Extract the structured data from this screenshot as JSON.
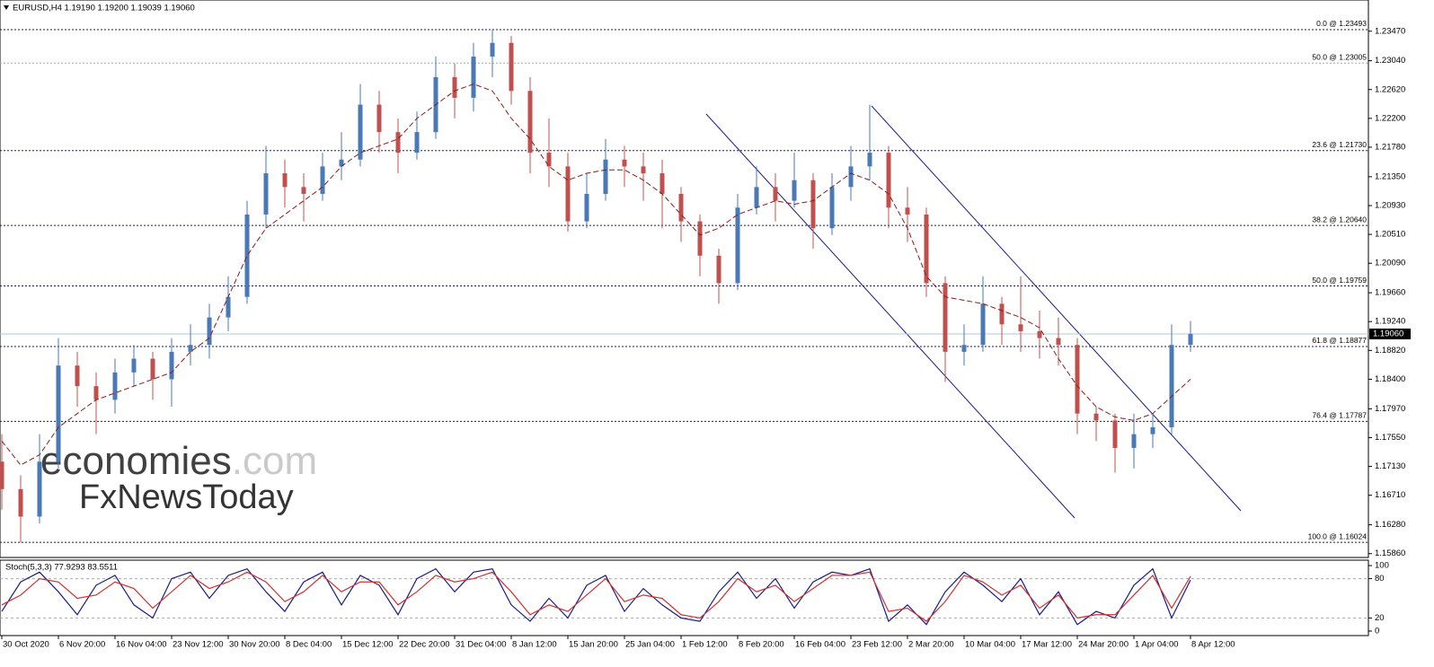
{
  "chart_data": [
    {
      "type": "candlestick",
      "title": "EURUSD,H4  1.19190 1.19200 1.19039 1.19060",
      "categories": [
        "30 Oct 2020",
        null,
        null,
        "6 Nov 20:00",
        null,
        null,
        "16 Nov 04:00",
        null,
        null,
        "23 Nov 12:00",
        null,
        null,
        "30 Nov 20:00",
        null,
        null,
        "8 Dec 04:00",
        null,
        null,
        "15 Dec 12:00",
        null,
        null,
        "22 Dec 20:00",
        null,
        null,
        "31 Dec 04:00",
        null,
        null,
        "8 Jan 12:00",
        null,
        null,
        "15 Jan 20:00",
        null,
        null,
        "25 Jan 04:00",
        null,
        null,
        "1 Feb 12:00",
        null,
        null,
        "8 Feb 20:00",
        null,
        null,
        "16 Feb 04:00",
        null,
        null,
        "23 Feb 12:00",
        null,
        null,
        "2 Mar 20:00",
        null,
        null,
        "10 Mar 04:00",
        null,
        null,
        "17 Mar 12:00",
        null,
        null,
        "24 Mar 20:00",
        null,
        null,
        "1 Apr 04:00",
        null,
        null,
        "8 Apr 12:00"
      ],
      "open": [
        1.172,
        1.168,
        1.164,
        1.172,
        1.186,
        1.183,
        1.181,
        1.185,
        1.187,
        1.184,
        1.188,
        1.189,
        1.193,
        1.196,
        1.208,
        1.214,
        1.212,
        1.211,
        1.215,
        1.216,
        1.224,
        1.22,
        1.217,
        1.22,
        1.228,
        1.225,
        1.231,
        1.233,
        1.226,
        1.217,
        1.215,
        1.207,
        1.211,
        1.216,
        1.215,
        1.214,
        1.211,
        1.207,
        1.202,
        1.198,
        1.209,
        1.212,
        1.21,
        1.213,
        1.206,
        1.212,
        1.215,
        1.217,
        1.209,
        1.208,
        1.198,
        1.188,
        1.189,
        1.195,
        1.192,
        1.191,
        1.19,
        1.189,
        1.179,
        1.178,
        1.174,
        1.176,
        1.177,
        1.189
      ],
      "high": [
        1.176,
        1.17,
        1.176,
        1.19,
        1.188,
        1.185,
        1.187,
        1.189,
        1.188,
        1.19,
        1.192,
        1.195,
        1.199,
        1.21,
        1.218,
        1.216,
        1.214,
        1.217,
        1.22,
        1.227,
        1.226,
        1.222,
        1.223,
        1.231,
        1.23,
        1.233,
        1.2349,
        1.234,
        1.228,
        1.222,
        1.217,
        1.214,
        1.219,
        1.218,
        1.217,
        1.216,
        1.212,
        1.208,
        1.203,
        1.211,
        1.215,
        1.214,
        1.217,
        1.214,
        1.214,
        1.218,
        1.224,
        1.218,
        1.212,
        1.209,
        1.199,
        1.192,
        1.199,
        1.196,
        1.199,
        1.194,
        1.193,
        1.19,
        1.18,
        1.179,
        1.179,
        1.179,
        1.192,
        1.1925
      ],
      "low": [
        1.165,
        1.1602,
        1.163,
        1.171,
        1.18,
        1.176,
        1.179,
        1.183,
        1.181,
        1.18,
        1.186,
        1.187,
        1.191,
        1.195,
        1.206,
        1.209,
        1.207,
        1.21,
        1.213,
        1.215,
        1.217,
        1.214,
        1.216,
        1.219,
        1.222,
        1.223,
        1.228,
        1.224,
        1.214,
        1.212,
        1.2055,
        1.206,
        1.21,
        1.212,
        1.21,
        1.206,
        1.204,
        1.199,
        1.195,
        1.197,
        1.208,
        1.207,
        1.209,
        1.203,
        1.205,
        1.21,
        1.213,
        1.206,
        1.204,
        1.196,
        1.1836,
        1.186,
        1.188,
        1.189,
        1.188,
        1.187,
        1.186,
        1.176,
        1.175,
        1.1704,
        1.171,
        1.174,
        1.176,
        1.188
      ],
      "close": [
        1.168,
        1.164,
        1.172,
        1.186,
        1.183,
        1.181,
        1.185,
        1.187,
        1.184,
        1.188,
        1.189,
        1.193,
        1.196,
        1.208,
        1.214,
        1.212,
        1.211,
        1.215,
        1.216,
        1.224,
        1.22,
        1.217,
        1.22,
        1.228,
        1.225,
        1.231,
        1.233,
        1.226,
        1.217,
        1.215,
        1.207,
        1.211,
        1.216,
        1.215,
        1.214,
        1.211,
        1.207,
        1.202,
        1.198,
        1.209,
        1.212,
        1.21,
        1.213,
        1.206,
        1.212,
        1.215,
        1.217,
        1.209,
        1.208,
        1.198,
        1.188,
        1.189,
        1.195,
        1.192,
        1.191,
        1.19,
        1.189,
        1.179,
        1.178,
        1.174,
        1.176,
        1.177,
        1.189,
        1.1906
      ],
      "up_color": "#4a7ab5",
      "down_color": "#c0504d",
      "series": [
        {
          "color": "#8b1a1a",
          "style": "dashed",
          "values": [
            1.175,
            1.1715,
            1.173,
            1.177,
            1.179,
            1.181,
            1.182,
            1.183,
            1.184,
            1.185,
            1.188,
            1.19,
            1.196,
            1.202,
            1.206,
            1.208,
            1.21,
            1.212,
            1.215,
            1.217,
            1.218,
            1.219,
            1.222,
            1.224,
            1.226,
            1.227,
            1.226,
            1.222,
            1.219,
            1.215,
            1.213,
            1.214,
            1.2145,
            1.2145,
            1.213,
            1.211,
            1.208,
            1.205,
            1.206,
            1.208,
            1.209,
            1.21,
            1.2095,
            1.21,
            1.212,
            1.214,
            1.213,
            1.211,
            1.206,
            1.199,
            1.196,
            1.1955,
            1.195,
            1.194,
            1.193,
            1.1915,
            1.187,
            1.183,
            1.18,
            1.1785,
            1.178,
            1.179,
            1.1815,
            1.184
          ]
        }
      ],
      "levels": [
        {
          "value": 1.23493,
          "label": "0.0 @ 1.23493",
          "color": "#1b1b55"
        },
        {
          "value": 1.23005,
          "label": "50.0 @ 1.23005",
          "color": "#a8a8a8"
        },
        {
          "value": 1.2173,
          "label": "23.6 @ 1.21730",
          "color": "#1b1b55"
        },
        {
          "value": 1.2064,
          "label": "38.2 @ 1.20640",
          "color": "#1b1b55"
        },
        {
          "value": 1.19759,
          "label": "50.0 @ 1.19759",
          "color": "#1b1b55"
        },
        {
          "value": 1.18877,
          "label": "61.8 @ 1.18877",
          "color": "#1b1b55"
        },
        {
          "value": 1.17787,
          "label": "76.4 @ 1.17787",
          "color": "#1b1b55"
        },
        {
          "value": 1.16024,
          "label": "100.0 @ 1.16024",
          "color": "#1b1b55"
        }
      ],
      "last": {
        "value": 1.1906,
        "label": "1.19060"
      },
      "ylim": [
        1.15817,
        1.23872
      ],
      "yticks": [
        {
          "value": 1.2347,
          "label": "1.23470"
        },
        {
          "value": 1.2304,
          "label": "1.23040"
        },
        {
          "value": 1.2262,
          "label": "1.22620"
        },
        {
          "value": 1.222,
          "label": "1.22200"
        },
        {
          "value": 1.2178,
          "label": "1.21780"
        },
        {
          "value": 1.2135,
          "label": "1.21350"
        },
        {
          "value": 1.2093,
          "label": "1.20930"
        },
        {
          "value": 1.2051,
          "label": "1.20510"
        },
        {
          "value": 1.2009,
          "label": "1.20090"
        },
        {
          "value": 1.1966,
          "label": "1.19660"
        },
        {
          "value": 1.1924,
          "label": "1.19240"
        },
        {
          "value": 1.1882,
          "label": "1.18820"
        },
        {
          "value": 1.184,
          "label": "1.18400"
        },
        {
          "value": 1.1797,
          "label": "1.17970"
        },
        {
          "value": 1.1755,
          "label": "1.17550"
        },
        {
          "value": 1.1713,
          "label": "1.17130"
        },
        {
          "value": 1.1671,
          "label": "1.16710"
        },
        {
          "value": 1.1628,
          "label": "1.16280"
        },
        {
          "value": 1.1586,
          "label": "1.15860"
        }
      ],
      "watermark": {
        "brand": "economies",
        "suffix": ".com",
        "sub": "FxNewsToday"
      }
    },
    {
      "type": "line",
      "title": "Stoch(5,3,3) 77.9293 83.5511",
      "series": [
        {
          "color": "#1b1b8a",
          "values": [
            30,
            75,
            90,
            60,
            25,
            70,
            85,
            40,
            20,
            80,
            90,
            50,
            85,
            95,
            60,
            30,
            75,
            90,
            40,
            85,
            70,
            25,
            80,
            95,
            60,
            90,
            95,
            40,
            15,
            50,
            20,
            70,
            85,
            30,
            65,
            40,
            20,
            15,
            60,
            90,
            50,
            80,
            35,
            75,
            90,
            85,
            95,
            15,
            40,
            10,
            60,
            90,
            70,
            45,
            80,
            25,
            60,
            10,
            30,
            20,
            70,
            95,
            20,
            77.9293
          ]
        },
        {
          "color": "#d03030",
          "values": [
            40,
            55,
            80,
            75,
            50,
            55,
            75,
            65,
            35,
            60,
            85,
            65,
            75,
            90,
            75,
            45,
            60,
            85,
            60,
            75,
            75,
            40,
            60,
            85,
            75,
            80,
            90,
            60,
            25,
            40,
            30,
            55,
            80,
            45,
            55,
            50,
            25,
            20,
            45,
            80,
            60,
            70,
            45,
            65,
            85,
            85,
            90,
            30,
            35,
            15,
            45,
            85,
            75,
            55,
            70,
            35,
            55,
            20,
            25,
            25,
            55,
            85,
            35,
            83.5511
          ]
        }
      ],
      "levels": [
        20,
        80
      ],
      "ylim": [
        0,
        100
      ],
      "yticks": [
        0,
        20,
        80,
        100
      ]
    }
  ]
}
